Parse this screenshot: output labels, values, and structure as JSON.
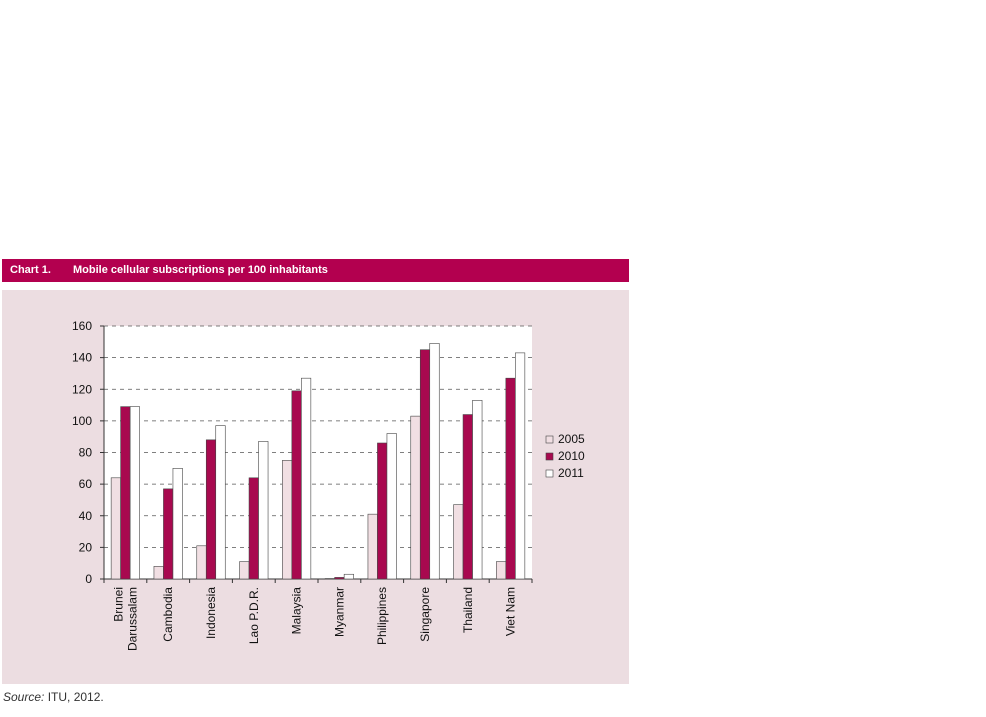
{
  "header": {
    "chart_number": "Chart 1.",
    "title": "Mobile cellular subscriptions per 100 inhabitants"
  },
  "source": {
    "label": "Source:",
    "text": "ITU, 2012."
  },
  "colors": {
    "header_bg": "#b3004f",
    "panel_bg": "#ecdde1",
    "series_2005": "#f1dfe3",
    "series_2010": "#a8094f",
    "series_2011": "#ffffff"
  },
  "chart_data": {
    "type": "bar",
    "title": "Mobile cellular subscriptions per 100 inhabitants",
    "categories": [
      "Brunei Darussalam",
      "Cambodia",
      "Indonesia",
      "Lao P.D.R.",
      "Malaysia",
      "Myanmar",
      "Philippines",
      "Singapore",
      "Thailand",
      "Viet Nam"
    ],
    "category_label_lines": [
      [
        "Brunei",
        "Darussalam"
      ],
      [
        "Cambodia"
      ],
      [
        "Indonesia"
      ],
      [
        "Lao P.D.R."
      ],
      [
        "Malaysia"
      ],
      [
        "Myanmar"
      ],
      [
        "Philippines"
      ],
      [
        "Singapore"
      ],
      [
        "Thailand"
      ],
      [
        "Viet Nam"
      ]
    ],
    "series": [
      {
        "name": "2005",
        "values": [
          64,
          8,
          21,
          11,
          75,
          0.3,
          41,
          103,
          47,
          11
        ]
      },
      {
        "name": "2010",
        "values": [
          109,
          57,
          88,
          64,
          119,
          1,
          86,
          145,
          104,
          127
        ]
      },
      {
        "name": "2011",
        "values": [
          109,
          70,
          97,
          87,
          127,
          3,
          92,
          149,
          113,
          143
        ]
      }
    ],
    "ylim": [
      0,
      160
    ],
    "yticks": [
      0,
      20,
      40,
      60,
      80,
      100,
      120,
      140,
      160
    ],
    "grid": "dashed horizontal",
    "legend_position": "right",
    "xlabel": "",
    "ylabel": ""
  }
}
